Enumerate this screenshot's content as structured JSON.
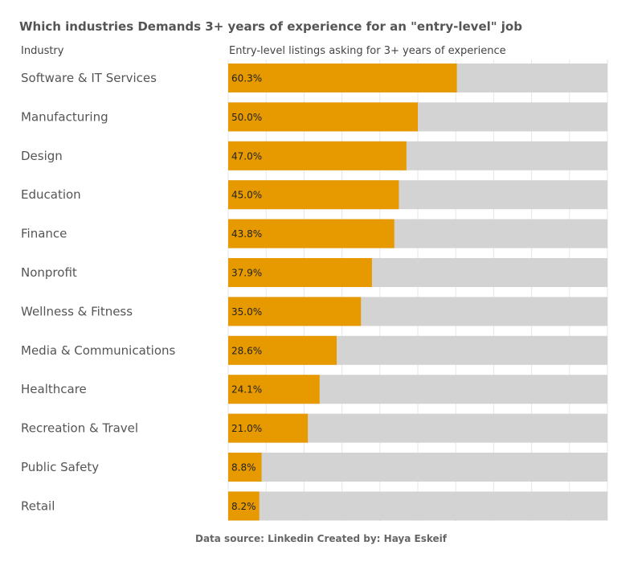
{
  "chart_data": {
    "type": "bar",
    "title": "Which industries Demands 3+ years of experience for an \"entry-level\" job",
    "category_header": "Industry",
    "value_header": "Entry-level listings asking for 3+ years of experience",
    "categories": [
      "Software & IT Services",
      "Manufacturing",
      "Design",
      "Education",
      "Finance",
      "Nonprofit",
      "Wellness & Fitness",
      "Media & Communications",
      "Healthcare",
      "Recreation & Travel",
      "Public Safety",
      "Retail"
    ],
    "values": [
      60.3,
      50.0,
      47.0,
      45.0,
      43.8,
      37.9,
      35.0,
      28.6,
      24.1,
      21.0,
      8.8,
      8.2
    ],
    "value_labels": [
      "60.3%",
      "50.0%",
      "47.0%",
      "45.0%",
      "43.8%",
      "37.9%",
      "35.0%",
      "28.6%",
      "24.1%",
      "21.0%",
      "8.8%",
      "8.2%"
    ],
    "xlim": [
      0,
      100
    ],
    "grid": true,
    "colors": {
      "bar": "#E69A00",
      "track": "#D3D3D3",
      "grid": "#E6E6E6"
    }
  },
  "footer": "Data source: Linkedin Created by: Haya Eskeif"
}
